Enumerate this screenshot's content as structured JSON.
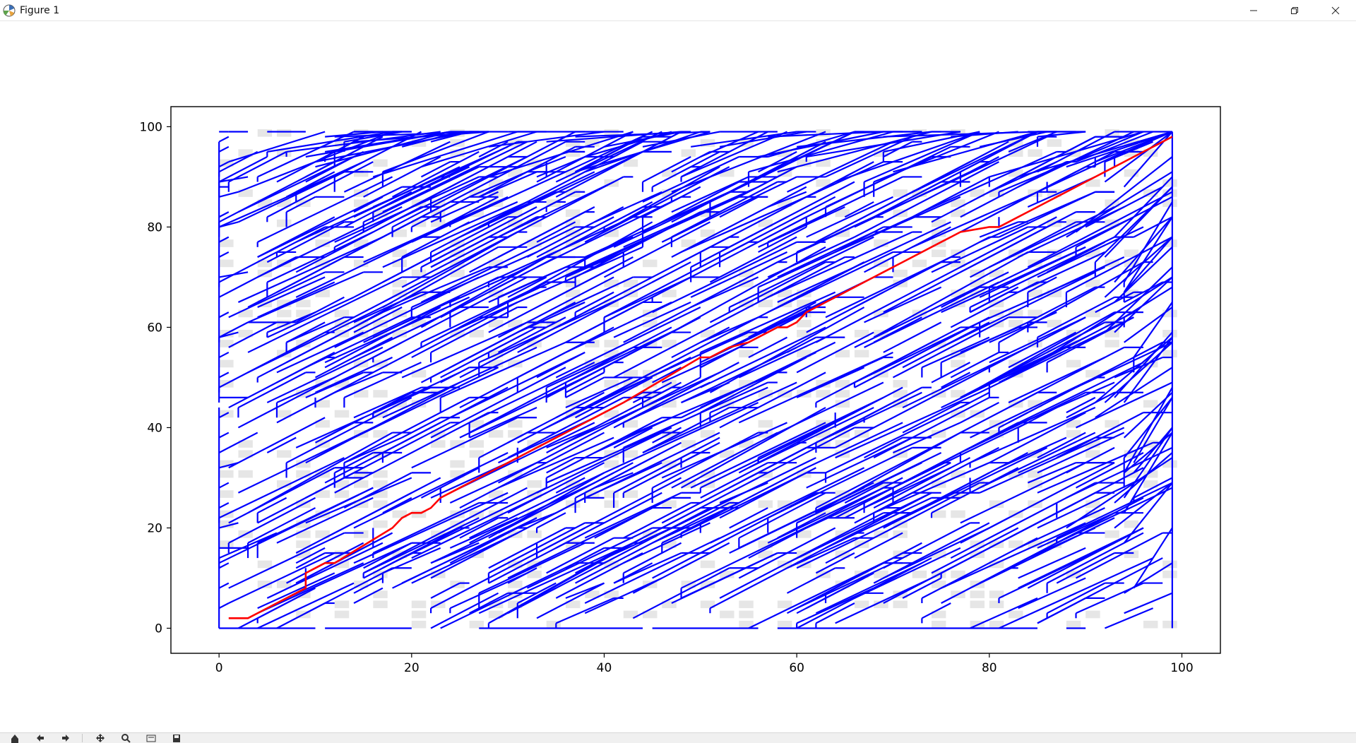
{
  "window": {
    "title": "Figure 1",
    "app_icon": "matplotlib-icon",
    "controls": [
      "minimize-icon",
      "restore-icon",
      "close-icon"
    ]
  },
  "toolbar": {
    "buttons": [
      "home-icon",
      "back-icon",
      "forward-icon",
      "pan-icon",
      "zoom-icon",
      "configure-icon",
      "save-icon"
    ]
  },
  "chart_data": {
    "type": "line",
    "title": "",
    "xlabel": "",
    "ylabel": "",
    "xlim": [
      -5,
      104
    ],
    "ylim": [
      -5,
      104
    ],
    "xticks": [
      0,
      20,
      40,
      60,
      80,
      100
    ],
    "yticks": [
      0,
      20,
      40,
      60,
      80,
      100
    ],
    "grid": false,
    "grid_size": 100,
    "colors": {
      "tree": "#0000ff",
      "path": "#ff0000",
      "obstacle": "#e6e6e6"
    },
    "series": [
      {
        "role": "tree",
        "color": "#0000ff",
        "segments": [
          [
            [
              0,
              99
            ],
            [
              1,
              99
            ]
          ],
          [
            [
              0,
              97
            ],
            [
              1,
              98
            ]
          ],
          [
            [
              0,
              95
            ],
            [
              1,
              96
            ]
          ],
          [
            [
              0,
              92
            ],
            [
              1,
              93
            ]
          ],
          [
            [
              0,
              89
            ],
            [
              3,
              90
            ]
          ],
          [
            [
              0,
              88
            ],
            [
              1,
              88
            ]
          ],
          [
            [
              0,
              86
            ],
            [
              2,
              87
            ]
          ],
          [
            [
              0,
              82
            ],
            [
              1,
              83
            ]
          ],
          [
            [
              0,
              80
            ],
            [
              2,
              81
            ]
          ],
          [
            [
              0,
              77
            ],
            [
              1,
              78
            ]
          ],
          [
            [
              0,
              74
            ],
            [
              1,
              75
            ]
          ],
          [
            [
              0,
              70
            ],
            [
              3,
              71
            ]
          ],
          [
            [
              0,
              66
            ],
            [
              1,
              67
            ]
          ],
          [
            [
              0,
              62
            ],
            [
              1,
              63
            ]
          ],
          [
            [
              0,
              58
            ],
            [
              2,
              59
            ]
          ],
          [
            [
              0,
              54
            ],
            [
              1,
              55
            ]
          ],
          [
            [
              0,
              50
            ],
            [
              1,
              51
            ]
          ],
          [
            [
              0,
              46
            ],
            [
              3,
              46
            ]
          ],
          [
            [
              0,
              42
            ],
            [
              1,
              43
            ]
          ],
          [
            [
              0,
              38
            ],
            [
              1,
              39
            ]
          ],
          [
            [
              0,
              35
            ],
            [
              1,
              36
            ]
          ],
          [
            [
              0,
              32
            ],
            [
              2,
              33
            ]
          ],
          [
            [
              0,
              28
            ],
            [
              1,
              29
            ]
          ],
          [
            [
              0,
              24
            ],
            [
              1,
              25
            ]
          ],
          [
            [
              0,
              20
            ],
            [
              2,
              21
            ]
          ],
          [
            [
              0,
              16
            ],
            [
              3,
              16
            ]
          ],
          [
            [
              0,
              12
            ],
            [
              1,
              13
            ]
          ],
          [
            [
              0,
              8
            ],
            [
              1,
              9
            ]
          ],
          [
            [
              0,
              4
            ],
            [
              1,
              5
            ]
          ],
          [
            [
              0,
              0
            ],
            [
              2,
              0
            ]
          ],
          [
            [
              0,
              97
            ],
            [
              0,
              45
            ]
          ],
          [
            [
              0,
              44
            ],
            [
              0,
              0
            ]
          ],
          [
            [
              1,
              99
            ],
            [
              3,
              99
            ]
          ],
          [
            [
              5,
              99
            ],
            [
              9,
              99
            ]
          ],
          [
            [
              14,
              99
            ],
            [
              20,
              99
            ]
          ],
          [
            [
              30,
              99
            ],
            [
              40,
              99
            ]
          ],
          [
            [
              52,
              99
            ],
            [
              58,
              99
            ]
          ],
          [
            [
              66,
              99
            ],
            [
              73,
              99
            ]
          ],
          [
            [
              84,
              99
            ],
            [
              90,
              99
            ]
          ],
          [
            [
              2,
              0
            ],
            [
              10,
              0
            ]
          ],
          [
            [
              11,
              0
            ],
            [
              20,
              0
            ]
          ],
          [
            [
              27,
              0
            ],
            [
              44,
              0
            ]
          ],
          [
            [
              45,
              0
            ],
            [
              56,
              0
            ]
          ],
          [
            [
              58,
              0
            ],
            [
              85,
              0
            ]
          ],
          [
            [
              88,
              0
            ],
            [
              90,
              0
            ]
          ],
          [
            [
              99,
              0
            ],
            [
              99,
              99
            ]
          ],
          [
            [
              9,
              8
            ],
            [
              9,
              12
            ]
          ],
          [
            [
              16,
              16
            ],
            [
              16,
              20
            ]
          ],
          [
            [
              23,
              25
            ],
            [
              23,
              28
            ]
          ],
          [
            [
              31,
              33
            ],
            [
              31,
              36
            ]
          ],
          [
            [
              44,
              46
            ],
            [
              44,
              44
            ]
          ],
          [
            [
              61,
              62
            ],
            [
              61,
              64
            ]
          ],
          [
            [
              70,
              71
            ],
            [
              70,
              74
            ]
          ],
          [
            [
              81,
              82
            ],
            [
              81,
              80
            ]
          ],
          [
            [
              86,
              87
            ],
            [
              86,
              89
            ]
          ],
          [
            [
              91,
              92
            ],
            [
              91,
              94
            ]
          ],
          [
            [
              10,
              46
            ],
            [
              10,
              44
            ]
          ],
          [
            [
              24,
              60
            ],
            [
              24,
              63
            ]
          ],
          [
            [
              42,
              72
            ],
            [
              42,
              75
            ]
          ],
          [
            [
              55,
              88
            ],
            [
              55,
              91
            ]
          ],
          [
            [
              7,
              30
            ],
            [
              7,
              33
            ]
          ],
          [
            [
              33,
              14
            ],
            [
              33,
              17
            ]
          ],
          [
            [
              64,
              40
            ],
            [
              64,
              43
            ]
          ],
          [
            [
              78,
              30
            ],
            [
              78,
              27
            ]
          ]
        ]
      },
      {
        "role": "path",
        "name": "",
        "color": "#ff0000",
        "points": [
          [
            1,
            2
          ],
          [
            3,
            2
          ],
          [
            9,
            8
          ],
          [
            9,
            11
          ],
          [
            10,
            12
          ],
          [
            11,
            13
          ],
          [
            12,
            13
          ],
          [
            18,
            20
          ],
          [
            19,
            22
          ],
          [
            20,
            23
          ],
          [
            21,
            23
          ],
          [
            22,
            24
          ],
          [
            23,
            26
          ],
          [
            24,
            27
          ],
          [
            25,
            28
          ],
          [
            26,
            29
          ],
          [
            27,
            30
          ],
          [
            28,
            31
          ],
          [
            30,
            33
          ],
          [
            31,
            34
          ],
          [
            32,
            35
          ],
          [
            35,
            38
          ],
          [
            36,
            39
          ],
          [
            37,
            40
          ],
          [
            38,
            41
          ],
          [
            39,
            42
          ],
          [
            40,
            43
          ],
          [
            41,
            44
          ],
          [
            42,
            45
          ],
          [
            50,
            54
          ],
          [
            51,
            54
          ],
          [
            52,
            55
          ],
          [
            53,
            56
          ],
          [
            55,
            57
          ],
          [
            58,
            60
          ],
          [
            59,
            60
          ],
          [
            60,
            61
          ],
          [
            61,
            63
          ],
          [
            62,
            64
          ],
          [
            63,
            65
          ],
          [
            64,
            66
          ],
          [
            68,
            70
          ],
          [
            69,
            71
          ],
          [
            70,
            72
          ],
          [
            71,
            73
          ],
          [
            75,
            77
          ],
          [
            76,
            78
          ],
          [
            77,
            79
          ],
          [
            80,
            80
          ],
          [
            81,
            80
          ],
          [
            82,
            81
          ],
          [
            83,
            82
          ],
          [
            84,
            83
          ],
          [
            85,
            84
          ],
          [
            86,
            85
          ],
          [
            87,
            86
          ],
          [
            89,
            88
          ],
          [
            90,
            89
          ],
          [
            91,
            90
          ],
          [
            92,
            91
          ],
          [
            94,
            93
          ],
          [
            95,
            94
          ],
          [
            96,
            95
          ],
          [
            97,
            96
          ],
          [
            98,
            97
          ],
          [
            99,
            98
          ]
        ]
      }
    ]
  }
}
